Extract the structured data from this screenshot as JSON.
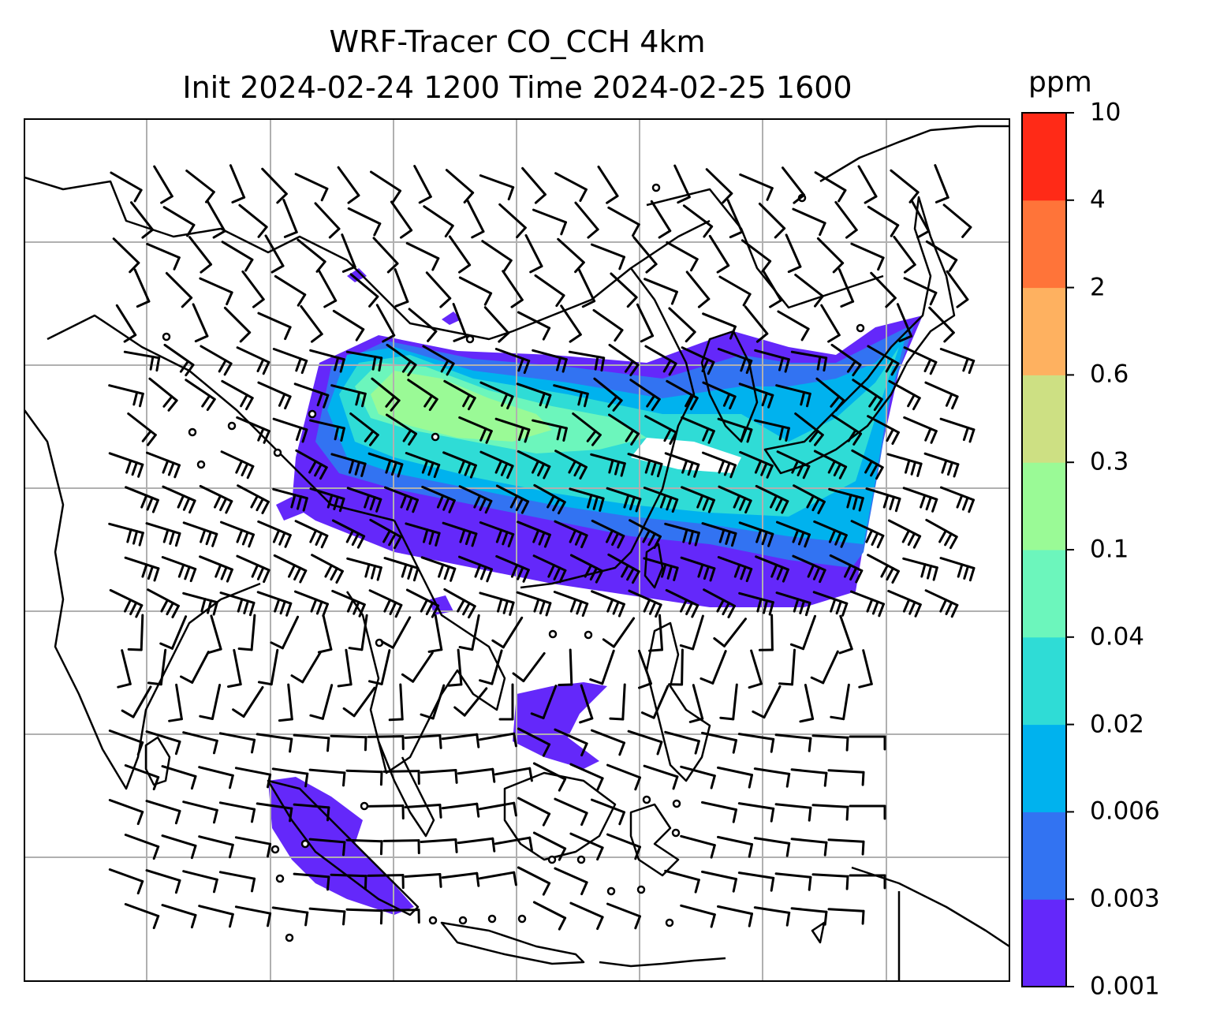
{
  "title": {
    "line1": "WRF-Tracer CO_CCH 4km",
    "line2": "Init 2024-02-24 1200 Time 2024-02-25 1600"
  },
  "colorbar": {
    "unit": "ppm",
    "ticks": [
      "0.001",
      "0.003",
      "0.006",
      "0.02",
      "0.04",
      "0.1",
      "0.3",
      "0.6",
      "2",
      "4",
      "10"
    ],
    "colors": [
      "#6428fa",
      "#3273f2",
      "#00b2ee",
      "#2fdcd6",
      "#6cf6bc",
      "#9afa96",
      "#cde083",
      "#feb160",
      "#ff7439",
      "#ff2a17"
    ]
  },
  "map": {
    "field": "CO_CCH tracer concentration",
    "overlay": "wind barbs",
    "gridlines": true,
    "coastline_color": "#000000",
    "grid_color": "#b0b0b0"
  }
}
